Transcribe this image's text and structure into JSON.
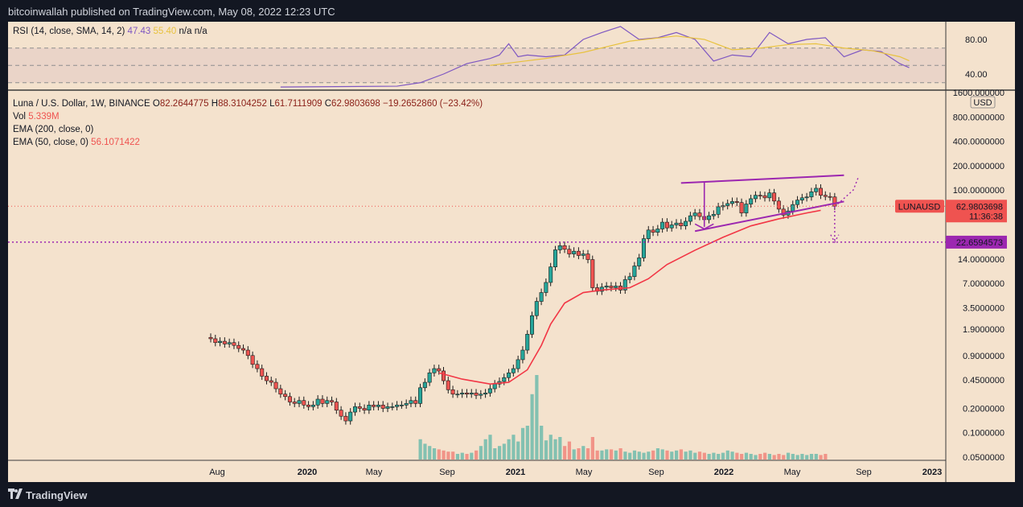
{
  "header": {
    "published": "bitcoinwallah published on TradingView.com, May 08, 2022 12:23 UTC"
  },
  "rsi_legend": {
    "label": "RSI (14, close, SMA, 14, 2)",
    "value": "47.43",
    "sma": "55.40",
    "na1": "n/a",
    "na2": "n/a"
  },
  "main_legend": {
    "symbol": "Luna / U.S. Dollar, 1W, BINANCE",
    "o_label": "O",
    "o": "82.2644775",
    "h_label": "H",
    "h": "88.3104252",
    "l_label": "L",
    "l": "61.7111909",
    "c_label": "C",
    "c": "62.9803698",
    "change": "−19.2652860 (−23.42%)",
    "vol_label": "Vol",
    "vol": "5.339M",
    "ema200_label": "EMA (200, close, 0)",
    "ema50_label": "EMA (50, close, 0)",
    "ema50": "56.1071422"
  },
  "price_axis": {
    "currency": "USD",
    "labels": [
      "1600.000000",
      "800.0000000",
      "400.0000000",
      "200.0000000",
      "100.0000000",
      "14.0000000",
      "7.0000000",
      "3.5000000",
      "1.9000000",
      "0.9000000",
      "0.4500000",
      "0.2000000",
      "0.1000000",
      "0.0500000"
    ],
    "symbol_tag": "LUNAUSD",
    "last_price": "62.9803698",
    "countdown": "11:36:38",
    "level_tag": "22.6594573"
  },
  "rsi_axis": {
    "labels": [
      "80.00",
      "40.00"
    ]
  },
  "time_axis": {
    "labels": [
      "Aug",
      "2020",
      "May",
      "Sep",
      "2021",
      "May",
      "Sep",
      "2022",
      "May",
      "Sep",
      "2023"
    ]
  },
  "footer": {
    "brand": "TradingView"
  },
  "chart_data": [
    {
      "type": "candlestick",
      "title": "Luna / U.S. Dollar, 1W, BINANCE",
      "scale": "log",
      "ylim": [
        0.045,
        2000
      ],
      "x_range": [
        "2019-07-29",
        "2023-01-02"
      ],
      "colors": {
        "up": "#26a69a",
        "down": "#ef5350",
        "ema50": "#f23645",
        "channel": "#9c27b0",
        "level": "#9c27b0"
      },
      "close_series": [
        1.45,
        1.3,
        1.35,
        1.25,
        1.3,
        1.2,
        1.1,
        1.05,
        0.9,
        0.7,
        0.62,
        0.5,
        0.44,
        0.42,
        0.35,
        0.3,
        0.28,
        0.24,
        0.23,
        0.25,
        0.22,
        0.21,
        0.22,
        0.26,
        0.23,
        0.25,
        0.24,
        0.19,
        0.16,
        0.14,
        0.18,
        0.21,
        0.2,
        0.19,
        0.22,
        0.21,
        0.22,
        0.2,
        0.21,
        0.21,
        0.22,
        0.22,
        0.23,
        0.25,
        0.23,
        0.36,
        0.42,
        0.55,
        0.62,
        0.58,
        0.44,
        0.34,
        0.3,
        0.3,
        0.31,
        0.3,
        0.31,
        0.29,
        0.3,
        0.31,
        0.35,
        0.4,
        0.43,
        0.48,
        0.55,
        0.62,
        0.8,
        1.05,
        1.65,
        2.8,
        4.2,
        5.4,
        7.2,
        11.2,
        18.2,
        20.5,
        18.5,
        16.2,
        17.5,
        15.5,
        16.2,
        13.8,
        6.2,
        5.6,
        6.3,
        6.5,
        6.2,
        6.5,
        5.8,
        7.8,
        8.5,
        11.5,
        14.5,
        25,
        32,
        30,
        33,
        40,
        34,
        37,
        39,
        36,
        41,
        48,
        52,
        47,
        43,
        48,
        50,
        62,
        64,
        68,
        72,
        70,
        52,
        67,
        78,
        86,
        85,
        80,
        92,
        73,
        58,
        49,
        55,
        66,
        75,
        80,
        82,
        95,
        105,
        86,
        83,
        82,
        63
      ],
      "ema50_line": [
        [
          49,
          0.55
        ],
        [
          54,
          0.46
        ],
        [
          60,
          0.4
        ],
        [
          64,
          0.42
        ],
        [
          68,
          0.6
        ],
        [
          71,
          1.2
        ],
        [
          73,
          2.2
        ],
        [
          76,
          4.0
        ],
        [
          80,
          5.4
        ],
        [
          84,
          5.8
        ],
        [
          90,
          6.2
        ],
        [
          94,
          8.0
        ],
        [
          98,
          12
        ],
        [
          104,
          18
        ],
        [
          110,
          26
        ],
        [
          116,
          36
        ],
        [
          122,
          44
        ],
        [
          128,
          52
        ],
        [
          131,
          56
        ]
      ],
      "channel_upper": [
        [
          101,
          122
        ],
        [
          136,
          152
        ]
      ],
      "channel_lower": [
        [
          104,
          31
        ],
        [
          136,
          72
        ]
      ],
      "horizontal_level": 22.6594573,
      "volume": [
        0,
        0,
        0,
        0,
        0,
        0,
        0,
        0,
        0,
        0,
        0,
        0,
        0,
        0,
        0,
        0,
        0,
        0,
        0,
        0,
        0,
        0,
        0,
        0,
        0,
        0,
        0,
        0,
        0,
        0,
        0,
        0,
        0,
        0,
        0,
        0,
        0,
        0,
        0,
        0,
        0,
        0,
        0,
        0,
        0,
        0.18,
        0.14,
        0.12,
        0.1,
        0.09,
        0.08,
        0.07,
        0.07,
        0.05,
        0.06,
        0.05,
        0.06,
        0.08,
        0.12,
        0.18,
        0.22,
        0.1,
        0.12,
        0.14,
        0.18,
        0.22,
        0.16,
        0.28,
        0.3,
        0.58,
        0.75,
        0.3,
        0.17,
        0.22,
        0.18,
        0.2,
        0.12,
        0.16,
        0.09,
        0.1,
        0.12,
        0.1,
        0.2,
        0.08,
        0.08,
        0.09,
        0.09,
        0.08,
        0.1,
        0.07,
        0.06,
        0.08,
        0.07,
        0.06,
        0.07,
        0.08,
        0.1,
        0.09,
        0.08,
        0.07,
        0.08,
        0.09,
        0.07,
        0.08,
        0.06,
        0.07,
        0.06,
        0.05,
        0.06,
        0.05,
        0.06,
        0.08,
        0.07,
        0.06,
        0.05,
        0.06,
        0.05,
        0.04,
        0.05,
        0.06,
        0.05,
        0.04,
        0.05,
        0.04,
        0.06,
        0.05,
        0.04,
        0.05,
        0.04,
        0.05,
        0.05,
        0.04,
        0.05
      ]
    },
    {
      "type": "line",
      "title": "RSI (14, close, SMA, 14, 2)",
      "ylim": [
        20,
        100
      ],
      "series": [
        {
          "name": "RSI",
          "points": [
            [
              15,
              25
            ],
            [
              40,
              26
            ],
            [
              45,
              30
            ],
            [
              50,
              40
            ],
            [
              55,
              52
            ],
            [
              60,
              58
            ],
            [
              62,
              62
            ],
            [
              64,
              75
            ],
            [
              66,
              60
            ],
            [
              68,
              62
            ],
            [
              72,
              60
            ],
            [
              76,
              62
            ],
            [
              80,
              80
            ],
            [
              84,
              88
            ],
            [
              88,
              95
            ],
            [
              92,
              80
            ],
            [
              96,
              82
            ],
            [
              100,
              88
            ],
            [
              104,
              80
            ],
            [
              108,
              55
            ],
            [
              112,
              62
            ],
            [
              116,
              60
            ],
            [
              120,
              88
            ],
            [
              124,
              75
            ],
            [
              128,
              80
            ],
            [
              132,
              82
            ],
            [
              136,
              60
            ],
            [
              140,
              68
            ],
            [
              144,
              66
            ],
            [
              148,
              52
            ],
            [
              150,
              47.43
            ]
          ]
        },
        {
          "name": "SMA",
          "points": [
            [
              60,
              50
            ],
            [
              72,
              58
            ],
            [
              80,
              65
            ],
            [
              90,
              78
            ],
            [
              100,
              84
            ],
            [
              106,
              80
            ],
            [
              112,
              68
            ],
            [
              118,
              70
            ],
            [
              124,
              74
            ],
            [
              130,
              75
            ],
            [
              136,
              70
            ],
            [
              142,
              67
            ],
            [
              148,
              60
            ],
            [
              150,
              55.4
            ]
          ]
        }
      ],
      "levels": [
        70,
        50,
        30
      ]
    }
  ]
}
